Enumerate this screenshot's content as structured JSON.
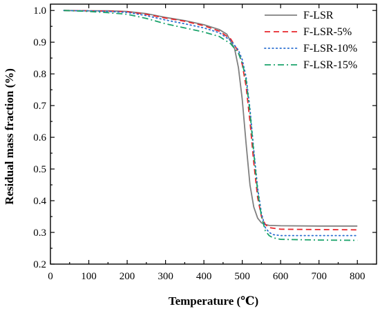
{
  "chart_data": {
    "type": "line",
    "xlabel": "Temperature (℃)",
    "ylabel": "Residual mass fraction (%)",
    "xlim": [
      0,
      850
    ],
    "ylim": [
      0.2,
      1.02
    ],
    "x_ticks": [
      "0",
      "100",
      "200",
      "300",
      "400",
      "500",
      "600",
      "700",
      "800"
    ],
    "y_ticks": [
      "0.2",
      "0.3",
      "0.4",
      "0.5",
      "0.6",
      "0.7",
      "0.8",
      "0.9",
      "1.0"
    ],
    "x_tick_values": [
      0,
      100,
      200,
      300,
      400,
      500,
      600,
      700,
      800
    ],
    "y_tick_values": [
      0.2,
      0.3,
      0.4,
      0.5,
      0.6,
      0.7,
      0.8,
      0.9,
      1.0
    ],
    "grid": false,
    "legend_position": "top-right",
    "series": [
      {
        "name": "F-LSR",
        "color": "#7f7f7f",
        "dash": "solid",
        "x": [
          35,
          100,
          150,
          200,
          250,
          300,
          350,
          400,
          440,
          460,
          480,
          490,
          500,
          510,
          520,
          530,
          540,
          550,
          560,
          570,
          600,
          700,
          800
        ],
        "y": [
          1.0,
          0.999,
          0.999,
          0.997,
          0.99,
          0.978,
          0.968,
          0.955,
          0.94,
          0.925,
          0.88,
          0.82,
          0.72,
          0.58,
          0.45,
          0.38,
          0.345,
          0.33,
          0.325,
          0.322,
          0.321,
          0.32,
          0.32
        ]
      },
      {
        "name": "F-LSR-5%",
        "color": "#e8262b",
        "dash": "dashed",
        "x": [
          35,
          100,
          150,
          200,
          250,
          300,
          350,
          400,
          440,
          470,
          490,
          500,
          510,
          520,
          530,
          540,
          550,
          560,
          570,
          600,
          700,
          800
        ],
        "y": [
          1.0,
          0.999,
          0.998,
          0.996,
          0.988,
          0.976,
          0.966,
          0.952,
          0.935,
          0.91,
          0.87,
          0.83,
          0.76,
          0.65,
          0.52,
          0.41,
          0.35,
          0.325,
          0.315,
          0.31,
          0.309,
          0.308
        ]
      },
      {
        "name": "F-LSR-10%",
        "color": "#2b6fd1",
        "dash": "dotted",
        "x": [
          35,
          100,
          150,
          200,
          250,
          300,
          350,
          400,
          440,
          470,
          490,
          500,
          510,
          520,
          530,
          540,
          550,
          560,
          570,
          580,
          600,
          700,
          800
        ],
        "y": [
          1.0,
          0.999,
          0.997,
          0.994,
          0.984,
          0.97,
          0.958,
          0.945,
          0.93,
          0.905,
          0.875,
          0.845,
          0.79,
          0.69,
          0.56,
          0.44,
          0.36,
          0.315,
          0.3,
          0.293,
          0.29,
          0.29,
          0.29
        ]
      },
      {
        "name": "F-LSR-15%",
        "color": "#1aa36b",
        "dash": "dashdot",
        "x": [
          35,
          100,
          150,
          200,
          250,
          300,
          350,
          400,
          440,
          470,
          490,
          500,
          510,
          520,
          530,
          540,
          550,
          560,
          570,
          580,
          600,
          700,
          800
        ],
        "y": [
          1.0,
          0.997,
          0.993,
          0.988,
          0.975,
          0.958,
          0.945,
          0.932,
          0.918,
          0.895,
          0.865,
          0.835,
          0.78,
          0.68,
          0.55,
          0.43,
          0.35,
          0.305,
          0.29,
          0.283,
          0.278,
          0.276,
          0.275
        ]
      }
    ]
  }
}
